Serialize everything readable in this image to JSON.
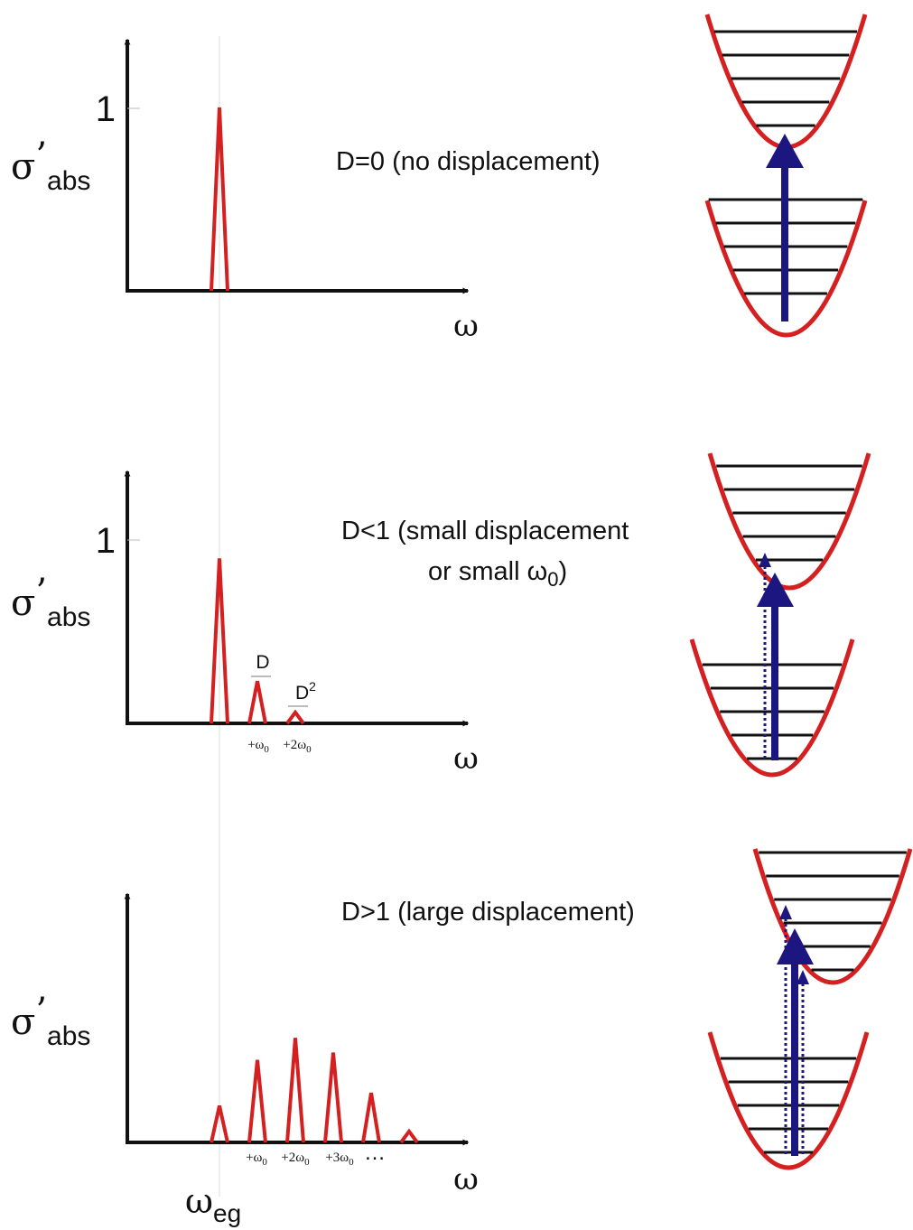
{
  "colors": {
    "peak": "#d42020",
    "well": "#d42020",
    "arrow": "#1b1680",
    "axis": "#111111",
    "level": "#111111",
    "guide": "#dddddd"
  },
  "shared": {
    "omega": "ω",
    "sigma": "σ",
    "prime": "’",
    "abs": "abs",
    "one": "1",
    "omega_eg": "ω",
    "eg": "eg"
  },
  "panels": [
    {
      "caption": "D=0 (no displacement)",
      "caption2": "",
      "peak_heights": [
        1.0
      ],
      "peak_labels": [],
      "tick_labels": [],
      "ellipsis": ""
    },
    {
      "caption": "D<1 (small displacement",
      "caption2": "or small ω",
      "caption2_sub": "0",
      "caption2_end": ")",
      "peak_heights": [
        0.9,
        0.23,
        0.06
      ],
      "peak_labels": [
        "D",
        "D"
      ],
      "peak_label_sup": "2",
      "tick_labels": [
        {
          "pre": "+ω",
          "sub": "0"
        },
        {
          "pre": "+2ω",
          "sub": "0"
        }
      ],
      "ellipsis": ""
    },
    {
      "caption": "D>1 (large displacement)",
      "caption2": "",
      "peak_heights": [
        0.2,
        0.45,
        0.57,
        0.49,
        0.27,
        0.06
      ],
      "peak_labels": [],
      "tick_labels": [
        {
          "pre": "+ω",
          "sub": "0"
        },
        {
          "pre": "+2ω",
          "sub": "0"
        },
        {
          "pre": "+3ω",
          "sub": "0"
        }
      ],
      "ellipsis": "…"
    }
  ]
}
